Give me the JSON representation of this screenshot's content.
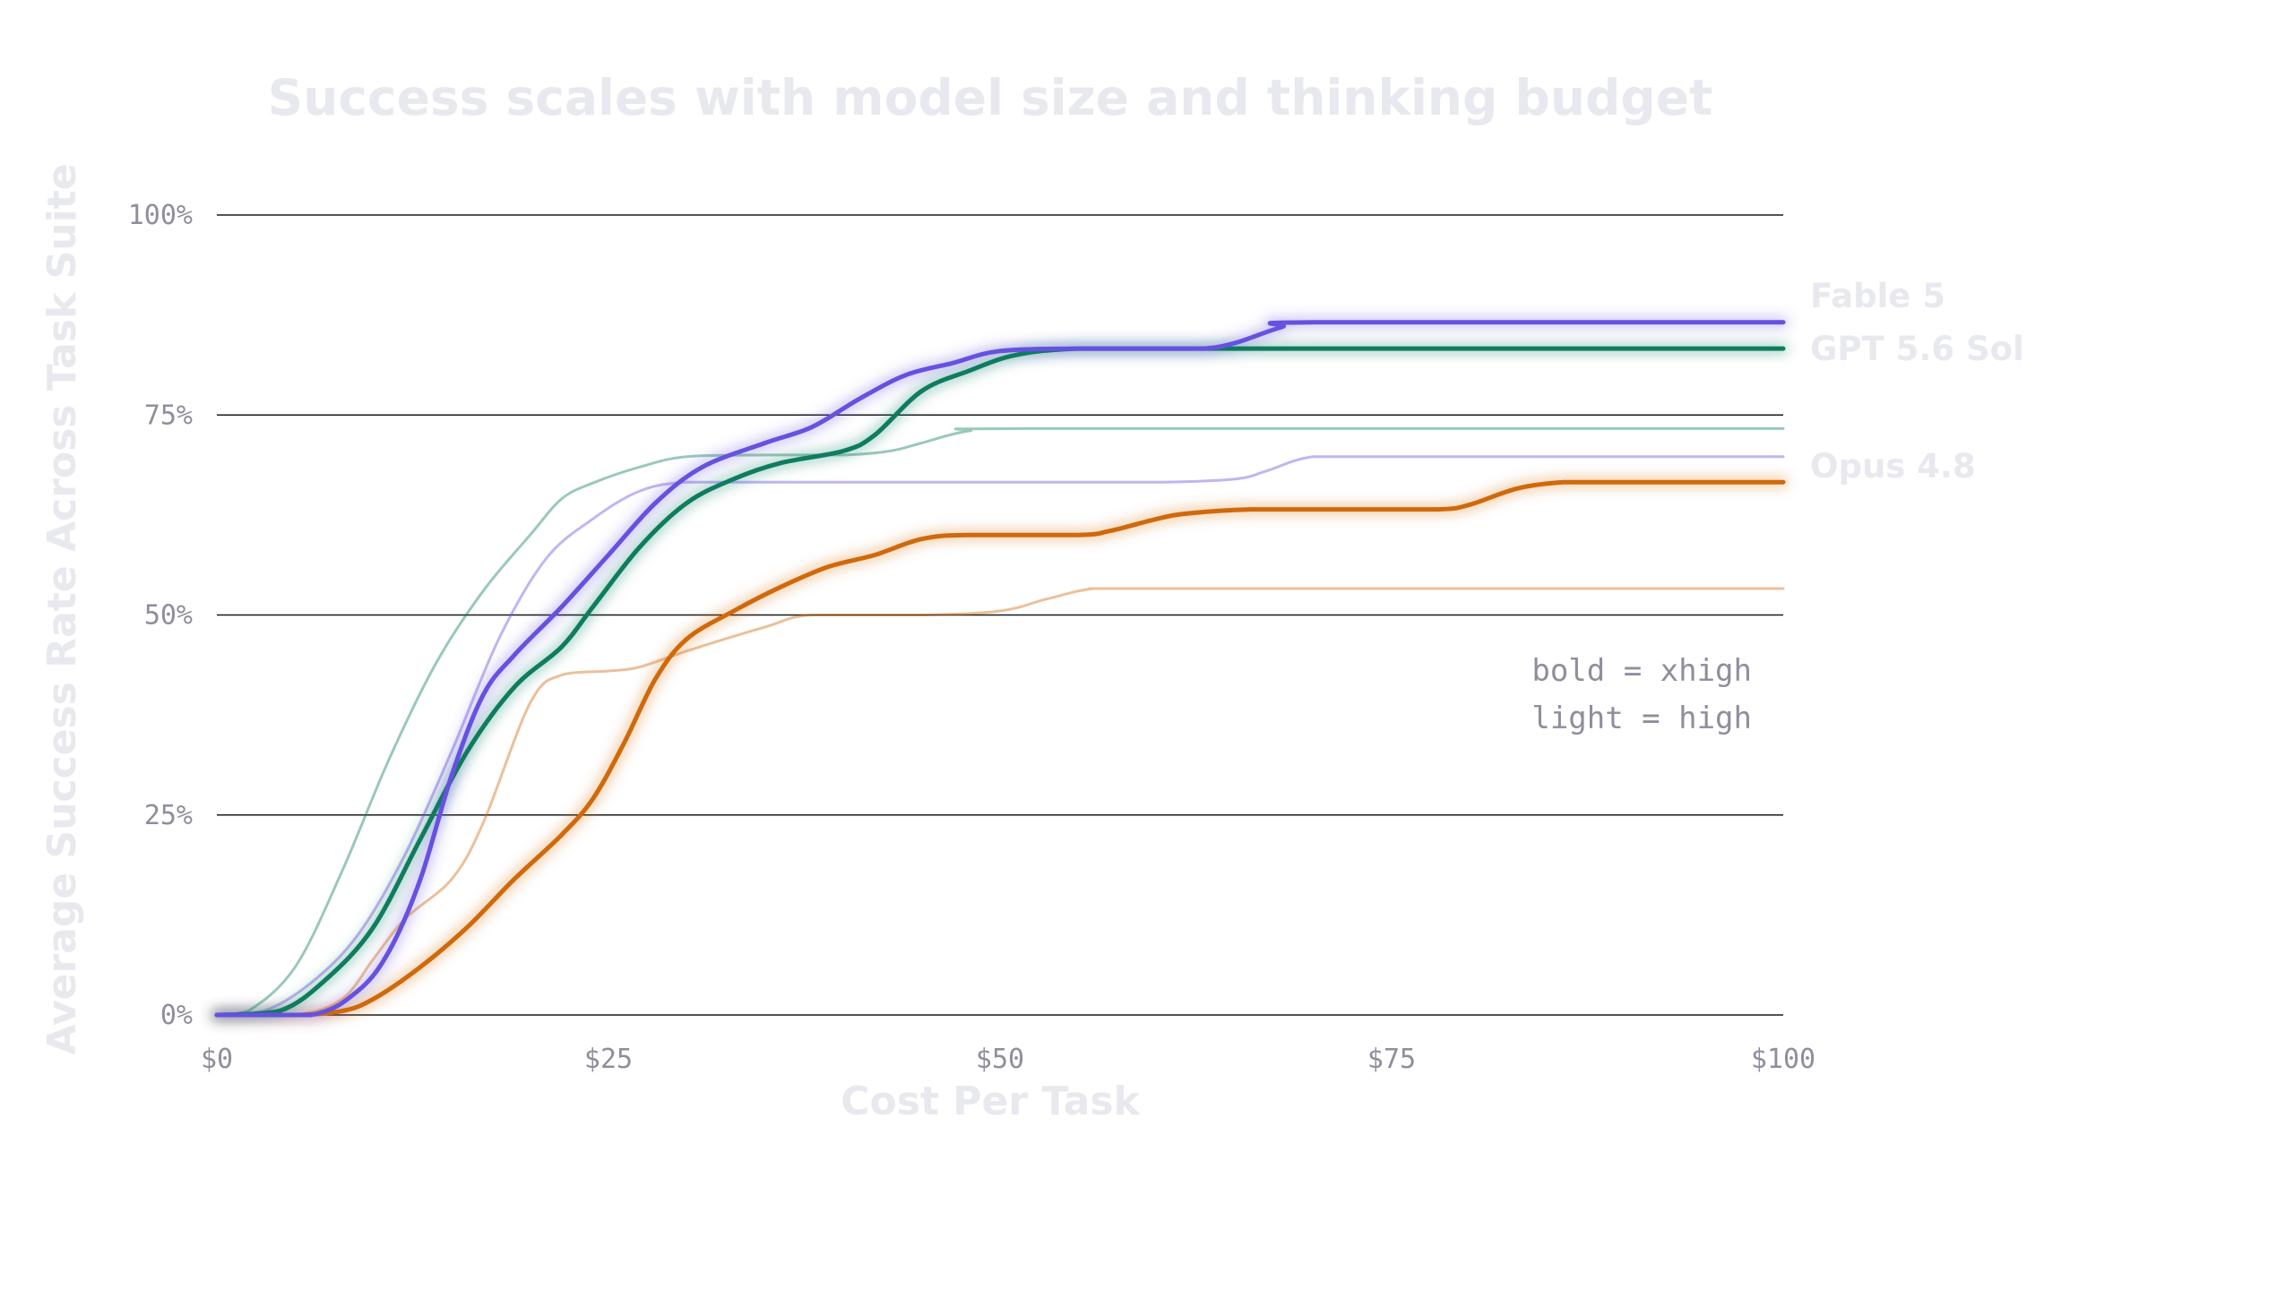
{
  "chart_data": {
    "type": "line",
    "title": "Success scales with model size and thinking budget",
    "xlabel": "Cost Per Task",
    "ylabel": "Average Success Rate Across Task Suite",
    "xlim": [
      0,
      100
    ],
    "ylim": [
      0,
      100
    ],
    "x_ticks": [
      "$0",
      "$25",
      "$50",
      "$75",
      "$100"
    ],
    "y_ticks": [
      "0%",
      "25%",
      "50%",
      "75%",
      "100%"
    ],
    "grid": "horizontal",
    "legend_notes": [
      "bold = xhigh",
      "light = high"
    ],
    "series_labels": [
      "Fable 5",
      "GPT 5.6 Sol",
      "Opus 4.8"
    ],
    "colors": {
      "fable": "#6651e0",
      "gpt": "#0e7c5e",
      "opus": "#d0690b",
      "text_light": "#e8e8ef",
      "tick": "#8e8e9c",
      "grid": "#1a1a1a"
    },
    "series": [
      {
        "name": "Opus 4.8",
        "level": "high",
        "color": "#d0690b",
        "points": [
          [
            0,
            0
          ],
          [
            5,
            0
          ],
          [
            8,
            2
          ],
          [
            10,
            7
          ],
          [
            12,
            12
          ],
          [
            15,
            17
          ],
          [
            17,
            24
          ],
          [
            20,
            39
          ],
          [
            22,
            42.5
          ],
          [
            25,
            43
          ],
          [
            27,
            43.5
          ],
          [
            30,
            45.5
          ],
          [
            35,
            48.5
          ],
          [
            38,
            50
          ],
          [
            45,
            50
          ],
          [
            50,
            50.5
          ],
          [
            53,
            52
          ],
          [
            56,
            53.3
          ],
          [
            60,
            53.3
          ],
          [
            100,
            53.3
          ]
        ]
      },
      {
        "name": "Fable 5",
        "level": "high",
        "color": "#6651e0",
        "points": [
          [
            0,
            0
          ],
          [
            3,
            0.5
          ],
          [
            6,
            4
          ],
          [
            9,
            10
          ],
          [
            12,
            20
          ],
          [
            15,
            33
          ],
          [
            18,
            47
          ],
          [
            21,
            57
          ],
          [
            24,
            62
          ],
          [
            27,
            65.5
          ],
          [
            30,
            66.6
          ],
          [
            35,
            66.6
          ],
          [
            50,
            66.6
          ],
          [
            60,
            66.6
          ],
          [
            65,
            67
          ],
          [
            67,
            68
          ],
          [
            70,
            69.8
          ],
          [
            75,
            69.8
          ],
          [
            100,
            69.8
          ]
        ]
      },
      {
        "name": "GPT 5.6 Sol",
        "level": "high",
        "color": "#0e7c5e",
        "points": [
          [
            0,
            0
          ],
          [
            2,
            0.5
          ],
          [
            5,
            6
          ],
          [
            8,
            18
          ],
          [
            11,
            32
          ],
          [
            14,
            44
          ],
          [
            17,
            53
          ],
          [
            20,
            60
          ],
          [
            22,
            64.5
          ],
          [
            24,
            66.5
          ],
          [
            27,
            68.5
          ],
          [
            30,
            69.8
          ],
          [
            35,
            70
          ],
          [
            40,
            70
          ],
          [
            43,
            70.5
          ],
          [
            45,
            71.5
          ],
          [
            48,
            73
          ],
          [
            52,
            73.3
          ],
          [
            100,
            73.3
          ]
        ]
      },
      {
        "name": "Opus 4.8",
        "level": "xhigh",
        "color": "#d0690b",
        "points": [
          [
            0,
            0
          ],
          [
            5,
            0
          ],
          [
            8,
            0.5
          ],
          [
            10,
            2
          ],
          [
            13,
            6
          ],
          [
            16,
            11
          ],
          [
            19,
            17
          ],
          [
            22,
            22.5
          ],
          [
            24,
            27
          ],
          [
            26,
            34
          ],
          [
            28,
            42
          ],
          [
            30,
            47
          ],
          [
            33,
            50.5
          ],
          [
            36,
            53.5
          ],
          [
            39,
            56
          ],
          [
            42,
            57.5
          ],
          [
            45,
            59.5
          ],
          [
            48,
            60
          ],
          [
            55,
            60
          ],
          [
            57,
            60.5
          ],
          [
            60,
            62
          ],
          [
            62,
            62.7
          ],
          [
            66,
            63.2
          ],
          [
            72,
            63.2
          ],
          [
            78,
            63.2
          ],
          [
            80,
            63.8
          ],
          [
            83,
            65.8
          ],
          [
            86,
            66.6
          ],
          [
            90,
            66.6
          ],
          [
            100,
            66.6
          ]
        ]
      },
      {
        "name": "GPT 5.6 Sol",
        "level": "xhigh",
        "color": "#0e7c5e",
        "points": [
          [
            0,
            0
          ],
          [
            4,
            0.5
          ],
          [
            7,
            4.5
          ],
          [
            10,
            11
          ],
          [
            13,
            22
          ],
          [
            16,
            33
          ],
          [
            19,
            41
          ],
          [
            22,
            46
          ],
          [
            24,
            51
          ],
          [
            27,
            58.5
          ],
          [
            30,
            64
          ],
          [
            33,
            67
          ],
          [
            36,
            69
          ],
          [
            40,
            70.5
          ],
          [
            42,
            72.5
          ],
          [
            45,
            78
          ],
          [
            48,
            80.5
          ],
          [
            51,
            82.5
          ],
          [
            55,
            83.3
          ],
          [
            62,
            83.3
          ],
          [
            100,
            83.3
          ]
        ]
      },
      {
        "name": "Fable 5",
        "level": "xhigh",
        "color": "#6651e0",
        "points": [
          [
            0,
            0
          ],
          [
            6,
            0
          ],
          [
            9,
            3
          ],
          [
            11,
            8
          ],
          [
            13,
            17
          ],
          [
            15,
            30
          ],
          [
            17,
            40
          ],
          [
            19,
            45
          ],
          [
            22,
            51
          ],
          [
            25,
            57.5
          ],
          [
            28,
            64
          ],
          [
            31,
            68.5
          ],
          [
            35,
            71.5
          ],
          [
            38,
            73.5
          ],
          [
            41,
            77
          ],
          [
            44,
            80
          ],
          [
            47,
            81.5
          ],
          [
            50,
            83
          ],
          [
            55,
            83.3
          ],
          [
            60,
            83.3
          ],
          [
            63,
            83.3
          ],
          [
            65,
            84
          ],
          [
            68,
            86
          ],
          [
            70,
            86.6
          ],
          [
            100,
            86.6
          ]
        ]
      }
    ]
  }
}
